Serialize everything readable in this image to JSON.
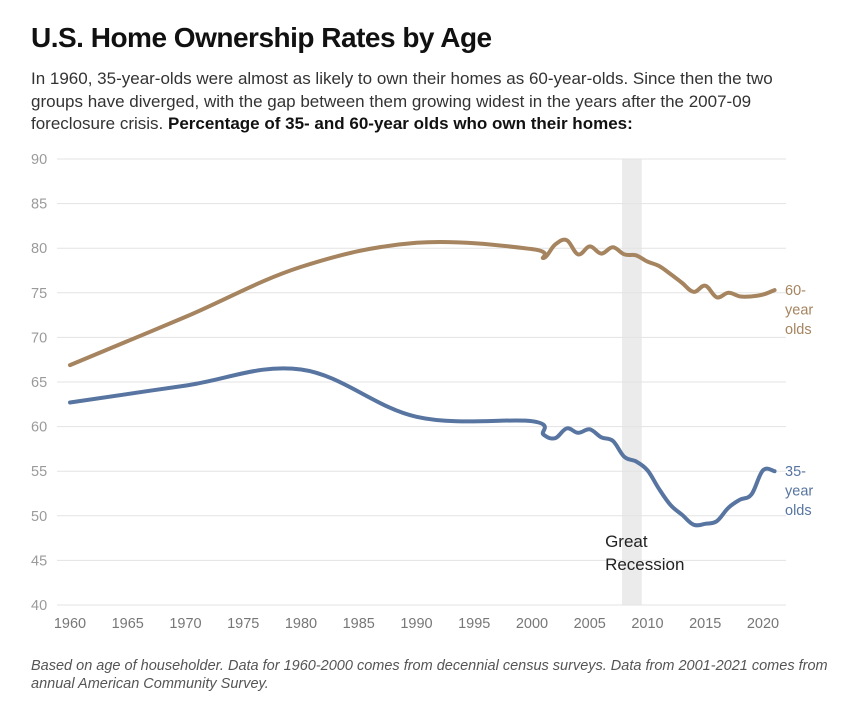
{
  "header": {
    "title": "U.S. Home Ownership Rates by Age",
    "subtitle_plain": "In 1960, 35-year-olds were almost as likely to own their homes as 60-year-olds. Since then the two groups have diverged, with the gap between them growing widest in the years after the 2007-09 foreclosure crisis. ",
    "subtitle_bold": "Percentage of 35- and 60-year olds who own their homes:"
  },
  "footer": {
    "note": "Based on age of householder. Data for 1960-2000 comes from decennial census surveys. Data from 2001-2021 comes from annual American Community Survey."
  },
  "chart_data": {
    "type": "line",
    "title": "U.S. Home Ownership Rates by Age",
    "xlabel": "",
    "ylabel": "",
    "xlim": [
      1960,
      2021
    ],
    "ylim": [
      40,
      90
    ],
    "grid": true,
    "y_ticks": [
      40,
      45,
      50,
      55,
      60,
      65,
      70,
      75,
      80,
      85,
      90
    ],
    "x_ticks": [
      1960,
      1965,
      1970,
      1975,
      1980,
      1985,
      1990,
      1995,
      2000,
      2005,
      2010,
      2015,
      2020
    ],
    "series": [
      {
        "name": "60-year olds",
        "label_lines": [
          "60-",
          "year",
          "olds"
        ],
        "color": "#a5845f",
        "x": [
          1960,
          1970,
          1980,
          1990,
          2000,
          2001,
          2002,
          2003,
          2004,
          2005,
          2006,
          2007,
          2008,
          2009,
          2010,
          2011,
          2012,
          2013,
          2014,
          2015,
          2016,
          2017,
          2018,
          2019,
          2020,
          2021
        ],
        "values": [
          66.9,
          72.3,
          77.9,
          80.6,
          79.9,
          78.9,
          80.4,
          80.9,
          79.3,
          80.2,
          79.4,
          80.1,
          79.3,
          79.2,
          78.5,
          78.0,
          77.1,
          76.1,
          75.1,
          75.8,
          74.5,
          75.0,
          74.6,
          74.6,
          74.8,
          75.3
        ]
      },
      {
        "name": "35-year olds",
        "label_lines": [
          "35-",
          "year",
          "olds"
        ],
        "color": "#5775a0",
        "x": [
          1960,
          1970,
          1980,
          1990,
          2000,
          2001,
          2002,
          2003,
          2004,
          2005,
          2006,
          2007,
          2008,
          2009,
          2010,
          2011,
          2012,
          2013,
          2014,
          2015,
          2016,
          2017,
          2018,
          2019,
          2020,
          2021
        ],
        "values": [
          62.7,
          64.6,
          66.4,
          61.1,
          60.6,
          59.1,
          58.7,
          59.8,
          59.3,
          59.7,
          58.8,
          58.4,
          56.6,
          56.1,
          55.1,
          53.0,
          51.2,
          50.1,
          49.0,
          49.1,
          49.4,
          50.9,
          51.8,
          52.4,
          55.1,
          55.0
        ]
      }
    ],
    "shaded_regions": [
      {
        "label_lines": [
          "Great",
          "Recession"
        ],
        "x_start": 2007.8,
        "x_end": 2009.5,
        "color": "#ebebeb"
      }
    ]
  }
}
